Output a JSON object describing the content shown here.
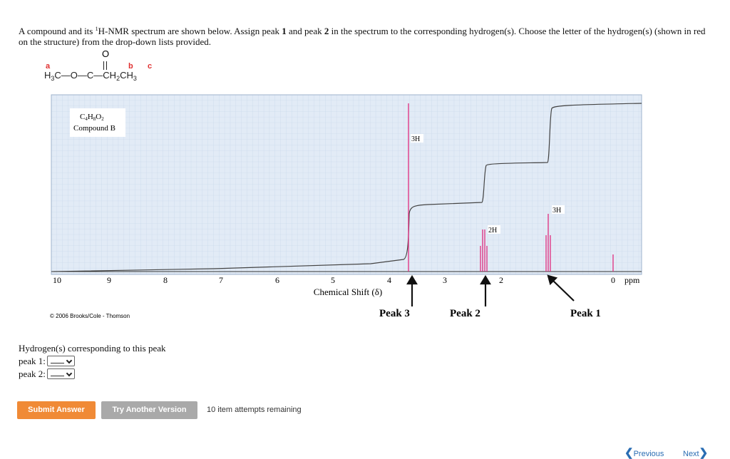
{
  "question": [
    "A compound and its ",
    "1",
    "H-NMR spectrum are shown below. Assign peak ",
    "1",
    " and peak ",
    "2",
    " in the spectrum to the corresponding hydrogen(s). Choose the letter of the hydrogen(s) (shown in red on the structure) from the drop-down lists provided."
  ],
  "structure": {
    "oxygen": "O",
    "labels": [
      "a",
      "b",
      "c"
    ],
    "formula": [
      "H",
      "3",
      "C—O—C—CH",
      "2",
      "CH",
      "3"
    ]
  },
  "spectrum": {
    "formula": [
      "C",
      "4",
      "H",
      "8",
      "O",
      "2"
    ],
    "compound": "Compound B",
    "integrations": [
      "3H",
      "2H",
      "3H"
    ],
    "axis_labels": [
      "10",
      "9",
      "8",
      "7",
      "6",
      "5",
      "4",
      "3",
      "2",
      "0"
    ],
    "unit": "ppm",
    "axis_title": "Chemical Shift (δ)",
    "peaks": [
      "Peak 3",
      "Peak 2",
      "Peak 1"
    ],
    "copyright": "© 2006 Brooks/Cole - Thomson"
  },
  "form": {
    "heading": "Hydrogen(s) corresponding to this peak",
    "fields": [
      "peak 1:",
      "peak 2:"
    ]
  },
  "buttons": {
    "submit": "Submit Answer",
    "retry": "Try Another Version",
    "attempts": "10 item attempts remaining"
  },
  "nav": {
    "previous": "Previous",
    "next": "Next"
  }
}
